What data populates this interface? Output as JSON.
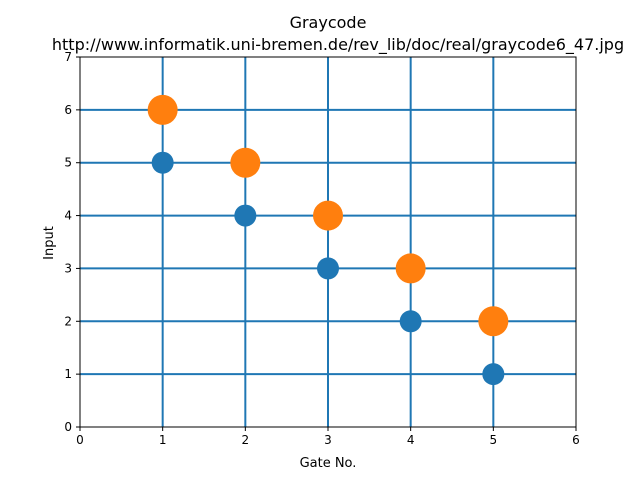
{
  "chart_data": {
    "type": "scatter",
    "title": "Graycode",
    "subtitle": "http://www.informatik.uni-bremen.de/rev_lib/doc/real/graycode6_47.jpg",
    "xlabel": "Gate No.",
    "ylabel": "Input",
    "xlim": [
      0,
      6
    ],
    "ylim": [
      0,
      7
    ],
    "xticks": [
      "0",
      "1",
      "2",
      "3",
      "4",
      "5",
      "6"
    ],
    "yticks": [
      "0",
      "1",
      "2",
      "3",
      "4",
      "5",
      "6",
      "7"
    ],
    "vertical_lines_x": [
      1,
      2,
      3,
      4,
      5
    ],
    "horizontal_lines_y": [
      1,
      2,
      3,
      4,
      5,
      6
    ],
    "grid_color": "#1f77b4",
    "series": [
      {
        "color": "#1f77b4",
        "marker": "small-circle",
        "points": [
          {
            "x": 1,
            "y": 5
          },
          {
            "x": 2,
            "y": 4
          },
          {
            "x": 3,
            "y": 3
          },
          {
            "x": 4,
            "y": 2
          },
          {
            "x": 5,
            "y": 1
          }
        ]
      },
      {
        "color": "#ff7f0e",
        "marker": "large-circle",
        "points": [
          {
            "x": 1,
            "y": 6
          },
          {
            "x": 2,
            "y": 5
          },
          {
            "x": 3,
            "y": 4
          },
          {
            "x": 4,
            "y": 3
          },
          {
            "x": 5,
            "y": 2
          }
        ]
      }
    ]
  }
}
